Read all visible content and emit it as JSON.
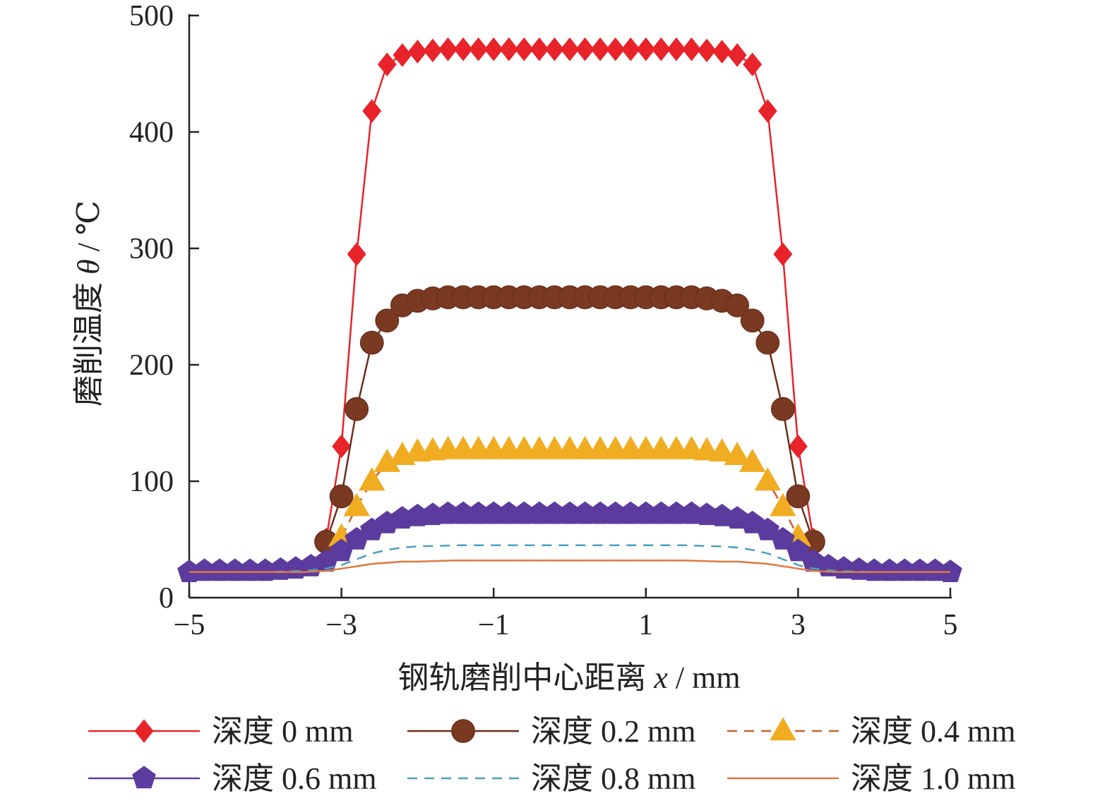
{
  "chart_data": {
    "type": "line",
    "xlabel_main": "钢轨磨削中心距离 ",
    "xlabel_var": "x",
    "xlabel_unit": " / mm",
    "ylabel_main": "磨削温度 ",
    "ylabel_var": "θ",
    "ylabel_unit": " / ℃",
    "xlim": [
      -5,
      5
    ],
    "ylim": [
      0,
      500
    ],
    "x_ticks": [
      -5,
      -3,
      -1,
      1,
      3,
      5
    ],
    "x_tick_labels": [
      "−5",
      "−3",
      "−1",
      "1",
      "3",
      "5"
    ],
    "y_ticks": [
      0,
      100,
      200,
      300,
      400,
      500
    ],
    "y_tick_labels": [
      "0",
      "100",
      "200",
      "300",
      "400",
      "500"
    ],
    "legend_position": "bottom",
    "grid": false,
    "series": [
      {
        "name": "深度 0 mm",
        "color": "#e8232a",
        "marker": "diamond",
        "line": "solid",
        "x": [
          -3.2,
          -3.0,
          -2.8,
          -2.6,
          -2.4,
          -2.2,
          -2.0,
          -1.8,
          -1.6,
          -1.4,
          -1.2,
          -1.0,
          -0.8,
          -0.6,
          -0.4,
          -0.2,
          0.0,
          0.2,
          0.4,
          0.6,
          0.8,
          1.0,
          1.2,
          1.4,
          1.6,
          1.8,
          2.0,
          2.2,
          2.4,
          2.6,
          2.8,
          3.0,
          3.2
        ],
        "y": [
          50,
          130,
          295,
          418,
          458,
          466,
          469,
          470,
          471,
          471,
          471,
          471,
          471,
          471,
          471,
          471,
          471,
          471,
          471,
          471,
          471,
          471,
          471,
          471,
          471,
          470,
          469,
          466,
          458,
          418,
          295,
          130,
          50
        ]
      },
      {
        "name": "深度 0.2 mm",
        "color": "#6b2e1c",
        "marker_fill": "#7a3a22",
        "marker": "circle",
        "line": "solid",
        "x": [
          -3.2,
          -3.0,
          -2.8,
          -2.6,
          -2.4,
          -2.2,
          -2.0,
          -1.8,
          -1.6,
          -1.4,
          -1.2,
          -1.0,
          -0.8,
          -0.6,
          -0.4,
          -0.2,
          0.0,
          0.2,
          0.4,
          0.6,
          0.8,
          1.0,
          1.2,
          1.4,
          1.6,
          1.8,
          2.0,
          2.2,
          2.4,
          2.6,
          2.8,
          3.0,
          3.2
        ],
        "y": [
          48,
          87,
          162,
          219,
          238,
          251,
          255,
          257,
          258,
          258,
          258,
          258,
          258,
          258,
          258,
          258,
          258,
          258,
          258,
          258,
          258,
          258,
          258,
          258,
          258,
          257,
          255,
          251,
          238,
          219,
          162,
          87,
          48
        ]
      },
      {
        "name": "深度 0.4 mm",
        "color": "#c8602e",
        "marker_fill": "#f0ad22",
        "marker": "triangle",
        "line": "dashed",
        "x": [
          -3.0,
          -2.8,
          -2.6,
          -2.4,
          -2.2,
          -2.0,
          -1.8,
          -1.6,
          -1.4,
          -1.2,
          -1.0,
          -0.8,
          -0.6,
          -0.4,
          -0.2,
          0.0,
          0.2,
          0.4,
          0.6,
          0.8,
          1.0,
          1.2,
          1.4,
          1.6,
          1.8,
          2.0,
          2.2,
          2.4,
          2.6,
          2.8,
          3.0
        ],
        "y": [
          52,
          78,
          100,
          116,
          122,
          125,
          126,
          127,
          127,
          127,
          127,
          127,
          127,
          127,
          127,
          127,
          127,
          127,
          127,
          127,
          127,
          127,
          127,
          127,
          126,
          125,
          122,
          116,
          100,
          78,
          52
        ]
      },
      {
        "name": "深度 0.6 mm",
        "color": "#5c3b9e",
        "marker_fill": "#5c3b9e",
        "marker": "pentagon",
        "line": "solid",
        "x": [
          -5.0,
          -4.8,
          -4.6,
          -4.4,
          -4.2,
          -4.0,
          -3.8,
          -3.6,
          -3.4,
          -3.2,
          -3.0,
          -2.8,
          -2.6,
          -2.4,
          -2.2,
          -2.0,
          -1.8,
          -1.6,
          -1.4,
          -1.2,
          -1.0,
          -0.8,
          -0.6,
          -0.4,
          -0.2,
          0.0,
          0.2,
          0.4,
          0.6,
          0.8,
          1.0,
          1.2,
          1.4,
          1.6,
          1.8,
          2.0,
          2.2,
          2.4,
          2.6,
          2.8,
          3.0,
          3.2,
          3.4,
          3.6,
          3.8,
          4.0,
          4.2,
          4.4,
          4.6,
          4.8,
          5.0
        ],
        "y": [
          22,
          23,
          23,
          23,
          23,
          23,
          24,
          25,
          27,
          31,
          40,
          50,
          58,
          64,
          68,
          70,
          71,
          72,
          72,
          72,
          72,
          72,
          72,
          72,
          72,
          72,
          72,
          72,
          72,
          72,
          72,
          72,
          72,
          72,
          71,
          70,
          68,
          64,
          58,
          50,
          40,
          31,
          27,
          25,
          24,
          23,
          23,
          23,
          23,
          23,
          22
        ]
      },
      {
        "name": "深度 0.8 mm",
        "color": "#4a9fbf",
        "marker": "none",
        "line": "dashed",
        "x": [
          -5.0,
          -4.0,
          -3.5,
          -3.2,
          -3.0,
          -2.8,
          -2.6,
          -2.4,
          -2.2,
          -2.0,
          -1.5,
          0.0,
          1.5,
          2.0,
          2.2,
          2.4,
          2.6,
          2.8,
          3.0,
          3.2,
          3.5,
          4.0,
          5.0
        ],
        "y": [
          22,
          22,
          23,
          25,
          28,
          33,
          38,
          41,
          43,
          44,
          45,
          45,
          45,
          44,
          43,
          41,
          38,
          33,
          28,
          25,
          23,
          22,
          22
        ]
      },
      {
        "name": "深度 1.0 mm",
        "color": "#e07840",
        "marker": "none",
        "line": "solid",
        "x": [
          -5.0,
          -4.0,
          -3.5,
          -3.2,
          -3.0,
          -2.8,
          -2.6,
          -2.4,
          -2.2,
          -2.0,
          -1.5,
          0.0,
          1.5,
          2.0,
          2.2,
          2.4,
          2.6,
          2.8,
          3.0,
          3.2,
          3.5,
          4.0,
          5.0
        ],
        "y": [
          22,
          22,
          22,
          23,
          25,
          27,
          29,
          30,
          31,
          31,
          32,
          32,
          32,
          31,
          31,
          30,
          29,
          27,
          25,
          23,
          22,
          22,
          22
        ]
      }
    ]
  }
}
